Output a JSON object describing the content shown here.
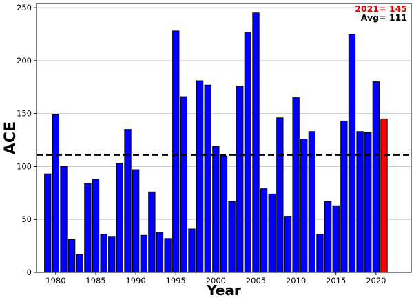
{
  "chart_data": {
    "type": "bar",
    "xlabel": "Year",
    "ylabel": "ACE",
    "ylim": [
      0,
      254
    ],
    "xlim": [
      1977.6,
      2024.4
    ],
    "yticks": [
      0,
      50,
      100,
      150,
      200,
      250
    ],
    "xticks": [
      1980,
      1985,
      1990,
      1995,
      2000,
      2005,
      2010,
      2015,
      2020
    ],
    "grid": "horizontal",
    "years": [
      1979,
      1980,
      1981,
      1982,
      1983,
      1984,
      1985,
      1986,
      1987,
      1988,
      1989,
      1990,
      1991,
      1992,
      1993,
      1994,
      1995,
      1996,
      1997,
      1998,
      1999,
      2000,
      2001,
      2002,
      2003,
      2004,
      2005,
      2006,
      2007,
      2008,
      2009,
      2010,
      2011,
      2012,
      2013,
      2014,
      2015,
      2016,
      2017,
      2018,
      2019,
      2020,
      2021
    ],
    "values": [
      93,
      149,
      100,
      31,
      17,
      84,
      88,
      36,
      34,
      103,
      135,
      97,
      35,
      76,
      38,
      32,
      228,
      166,
      41,
      181,
      177,
      119,
      110,
      67,
      176,
      227,
      245,
      79,
      74,
      146,
      53,
      165,
      126,
      133,
      36,
      67,
      63,
      143,
      225,
      133,
      132,
      180,
      145
    ],
    "highlight": {
      "year": 2021,
      "color": "#ff0000"
    },
    "bar_color": "#0000ff",
    "average": {
      "value": 111,
      "style": "dashed",
      "color": "#000000"
    },
    "annotations": {
      "current": {
        "text": "2021= 145",
        "color": "#e00000"
      },
      "avg": {
        "text": "Avg= 111",
        "color": "#000000"
      }
    }
  }
}
